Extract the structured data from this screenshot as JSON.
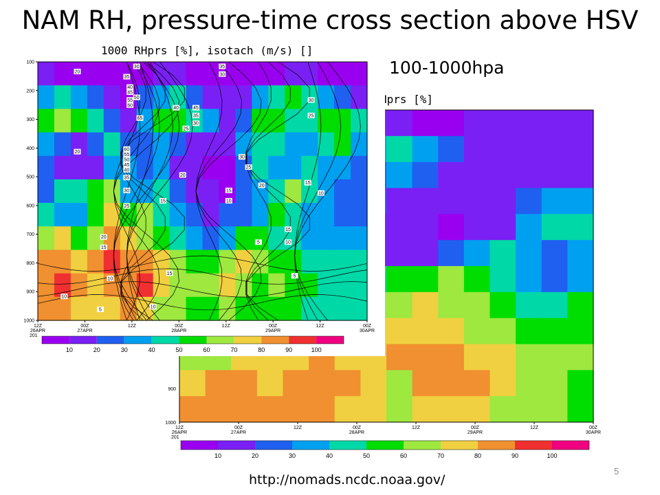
{
  "slide": {
    "title": "NAM RH, pressure-time cross section above HSV",
    "pressure_note": "100-1000hpa",
    "url": "http://nomads.ncdc.noaa.gov/",
    "slide_number": "5"
  },
  "palette": [
    "#9a00f0",
    "#7a20f5",
    "#2060f0",
    "#00a0f0",
    "#00d8a8",
    "#00dd00",
    "#9ee840",
    "#f0d040",
    "#f09030",
    "#f03030",
    "#f00080"
  ],
  "chart_data": [
    {
      "type": "heatmap",
      "title": "1000 RHprs [%], isotach (m/s) []",
      "yticks": [
        "100",
        "200",
        "300",
        "400",
        "500",
        "600",
        "700",
        "800",
        "900",
        "1000"
      ],
      "xticks": [
        {
          "time": "12Z",
          "date": "26APR"
        },
        {
          "time": "00Z",
          "date": "27APR"
        },
        {
          "time": "12Z",
          "date": ""
        },
        {
          "time": "00Z",
          "date": "28APR"
        },
        {
          "time": "12Z",
          "date": ""
        },
        {
          "time": "00Z",
          "date": "29APR"
        },
        {
          "time": "12Z",
          "date": ""
        },
        {
          "time": "00Z",
          "date": "30APR"
        }
      ],
      "year_label": "201",
      "colorbar_ticks": [
        "10",
        "20",
        "30",
        "40",
        "50",
        "60",
        "70",
        "80",
        "90",
        "100"
      ],
      "isotach_labels": [
        {
          "v": "20",
          "x": 0.12,
          "y": 0.04
        },
        {
          "v": "30",
          "x": 0.3,
          "y": 0.02
        },
        {
          "v": "35",
          "x": 0.27,
          "y": 0.06
        },
        {
          "v": "40",
          "x": 0.28,
          "y": 0.1
        },
        {
          "v": "45",
          "x": 0.28,
          "y": 0.12
        },
        {
          "v": "50",
          "x": 0.3,
          "y": 0.14
        },
        {
          "v": "55",
          "x": 0.28,
          "y": 0.15
        },
        {
          "v": "60",
          "x": 0.28,
          "y": 0.17
        },
        {
          "v": "35",
          "x": 0.56,
          "y": 0.02
        },
        {
          "v": "30",
          "x": 0.56,
          "y": 0.05
        },
        {
          "v": "40",
          "x": 0.42,
          "y": 0.18
        },
        {
          "v": "45",
          "x": 0.48,
          "y": 0.18
        },
        {
          "v": "35",
          "x": 0.48,
          "y": 0.21
        },
        {
          "v": "30",
          "x": 0.48,
          "y": 0.24
        },
        {
          "v": "65",
          "x": 0.31,
          "y": 0.22
        },
        {
          "v": "25",
          "x": 0.45,
          "y": 0.26
        },
        {
          "v": "30",
          "x": 0.83,
          "y": 0.15
        },
        {
          "v": "25",
          "x": 0.83,
          "y": 0.21
        },
        {
          "v": "20",
          "x": 0.12,
          "y": 0.35
        },
        {
          "v": "60",
          "x": 0.27,
          "y": 0.34
        },
        {
          "v": "55",
          "x": 0.27,
          "y": 0.36
        },
        {
          "v": "50",
          "x": 0.27,
          "y": 0.38
        },
        {
          "v": "45",
          "x": 0.27,
          "y": 0.4
        },
        {
          "v": "40",
          "x": 0.27,
          "y": 0.42
        },
        {
          "v": "35",
          "x": 0.27,
          "y": 0.45
        },
        {
          "v": "30",
          "x": 0.27,
          "y": 0.5
        },
        {
          "v": "25",
          "x": 0.27,
          "y": 0.56
        },
        {
          "v": "30",
          "x": 0.62,
          "y": 0.37
        },
        {
          "v": "25",
          "x": 0.64,
          "y": 0.41
        },
        {
          "v": "20",
          "x": 0.44,
          "y": 0.44
        },
        {
          "v": "15",
          "x": 0.38,
          "y": 0.54
        },
        {
          "v": "20",
          "x": 0.68,
          "y": 0.48
        },
        {
          "v": "15",
          "x": 0.58,
          "y": 0.5
        },
        {
          "v": "10",
          "x": 0.58,
          "y": 0.54
        },
        {
          "v": "15",
          "x": 0.82,
          "y": 0.47
        },
        {
          "v": "10",
          "x": 0.86,
          "y": 0.51
        },
        {
          "v": "20",
          "x": 0.2,
          "y": 0.68
        },
        {
          "v": "15",
          "x": 0.2,
          "y": 0.72
        },
        {
          "v": "15",
          "x": 0.76,
          "y": 0.65
        },
        {
          "v": "10",
          "x": 0.76,
          "y": 0.7
        },
        {
          "v": "5",
          "x": 0.67,
          "y": 0.7
        },
        {
          "v": "10",
          "x": 0.22,
          "y": 0.84
        },
        {
          "v": "15",
          "x": 0.4,
          "y": 0.82
        },
        {
          "v": "5",
          "x": 0.78,
          "y": 0.83
        },
        {
          "v": "10",
          "x": 0.08,
          "y": 0.91
        },
        {
          "v": "5",
          "x": 0.19,
          "y": 0.96
        },
        {
          "v": "10",
          "x": 0.35,
          "y": 0.95
        }
      ],
      "rh_grid": [
        [
          10,
          8,
          6,
          5,
          4,
          6,
          9,
          12,
          10,
          6,
          4,
          3,
          4,
          6,
          9,
          11,
          10,
          8,
          6,
          5
        ],
        [
          35,
          45,
          30,
          20,
          10,
          8,
          20,
          35,
          40,
          25,
          15,
          10,
          12,
          30,
          45,
          50,
          40,
          30,
          25,
          15
        ],
        [
          55,
          60,
          50,
          45,
          20,
          15,
          30,
          50,
          55,
          40,
          30,
          15,
          25,
          50,
          55,
          45,
          40,
          55,
          50,
          40
        ],
        [
          30,
          20,
          15,
          25,
          40,
          25,
          20,
          30,
          20,
          15,
          10,
          10,
          35,
          45,
          40,
          30,
          35,
          40,
          50,
          30
        ],
        [
          20,
          15,
          12,
          15,
          35,
          30,
          25,
          35,
          15,
          10,
          8,
          6,
          25,
          40,
          35,
          30,
          45,
          35,
          30,
          25
        ],
        [
          25,
          40,
          45,
          55,
          60,
          35,
          30,
          40,
          20,
          12,
          10,
          8,
          20,
          35,
          45,
          60,
          40,
          30,
          25,
          20
        ],
        [
          40,
          35,
          30,
          55,
          75,
          55,
          60,
          45,
          30,
          20,
          15,
          20,
          25,
          35,
          50,
          45,
          35,
          30,
          28,
          25
        ],
        [
          60,
          70,
          55,
          60,
          80,
          75,
          65,
          55,
          45,
          30,
          25,
          35,
          50,
          55,
          45,
          40,
          38,
          35,
          30,
          30
        ],
        [
          85,
          85,
          70,
          80,
          90,
          85,
          80,
          70,
          60,
          50,
          55,
          65,
          70,
          60,
          55,
          50,
          48,
          45,
          40,
          40
        ],
        [
          88,
          90,
          85,
          75,
          80,
          85,
          90,
          75,
          65,
          60,
          65,
          70,
          60,
          58,
          62,
          55,
          52,
          48,
          45,
          42
        ],
        [
          85,
          80,
          75,
          70,
          75,
          80,
          70,
          65,
          60,
          55,
          58,
          62,
          55,
          50,
          52,
          50,
          48,
          45,
          42,
          40
        ]
      ]
    },
    {
      "type": "heatmap",
      "title": "Hprs [%]",
      "yticks": [
        "900",
        "1000"
      ],
      "xticks": [
        {
          "time": "12Z",
          "date": "26APR"
        },
        {
          "time": "00Z",
          "date": "27APR"
        },
        {
          "time": "12Z",
          "date": ""
        },
        {
          "time": "00Z",
          "date": "28APR"
        },
        {
          "time": "12Z",
          "date": ""
        },
        {
          "time": "00Z",
          "date": "29APR"
        },
        {
          "time": "12Z",
          "date": ""
        },
        {
          "time": "00Z",
          "date": "30APR"
        }
      ],
      "year_label": "201",
      "colorbar_ticks": [
        "10",
        "20",
        "30",
        "40",
        "50",
        "60",
        "70",
        "80",
        "90",
        "100"
      ],
      "rh_grid": [
        [
          12,
          10,
          8,
          8,
          10,
          12,
          14,
          12,
          10,
          8,
          8,
          10,
          12,
          14,
          12,
          10
        ],
        [
          15,
          30,
          45,
          40,
          25,
          20,
          15,
          35,
          45,
          35,
          20,
          15,
          12,
          14,
          16,
          14
        ],
        [
          18,
          40,
          50,
          30,
          45,
          55,
          40,
          25,
          30,
          25,
          15,
          12,
          10,
          15,
          18,
          16
        ],
        [
          20,
          25,
          30,
          45,
          55,
          40,
          30,
          20,
          15,
          12,
          10,
          10,
          12,
          20,
          35,
          30
        ],
        [
          25,
          20,
          35,
          50,
          45,
          30,
          20,
          15,
          12,
          10,
          8,
          10,
          15,
          30,
          45,
          40
        ],
        [
          30,
          25,
          30,
          25,
          20,
          15,
          12,
          10,
          12,
          15,
          20,
          30,
          40,
          35,
          20,
          30
        ],
        [
          20,
          15,
          20,
          25,
          30,
          35,
          40,
          45,
          50,
          55,
          60,
          50,
          40,
          30,
          25,
          35
        ],
        [
          15,
          12,
          15,
          25,
          35,
          45,
          50,
          60,
          65,
          70,
          65,
          60,
          55,
          45,
          40,
          50
        ],
        [
          40,
          45,
          50,
          55,
          60,
          65,
          70,
          72,
          75,
          72,
          70,
          65,
          60,
          55,
          50,
          55
        ],
        [
          60,
          65,
          70,
          75,
          78,
          80,
          78,
          75,
          80,
          85,
          82,
          78,
          72,
          68,
          62,
          60
        ],
        [
          75,
          80,
          85,
          78,
          82,
          85,
          80,
          70,
          68,
          80,
          85,
          80,
          72,
          65,
          60,
          58
        ],
        [
          80,
          85,
          82,
          80,
          85,
          80,
          75,
          70,
          65,
          70,
          75,
          72,
          68,
          62,
          60,
          58
        ]
      ]
    }
  ]
}
